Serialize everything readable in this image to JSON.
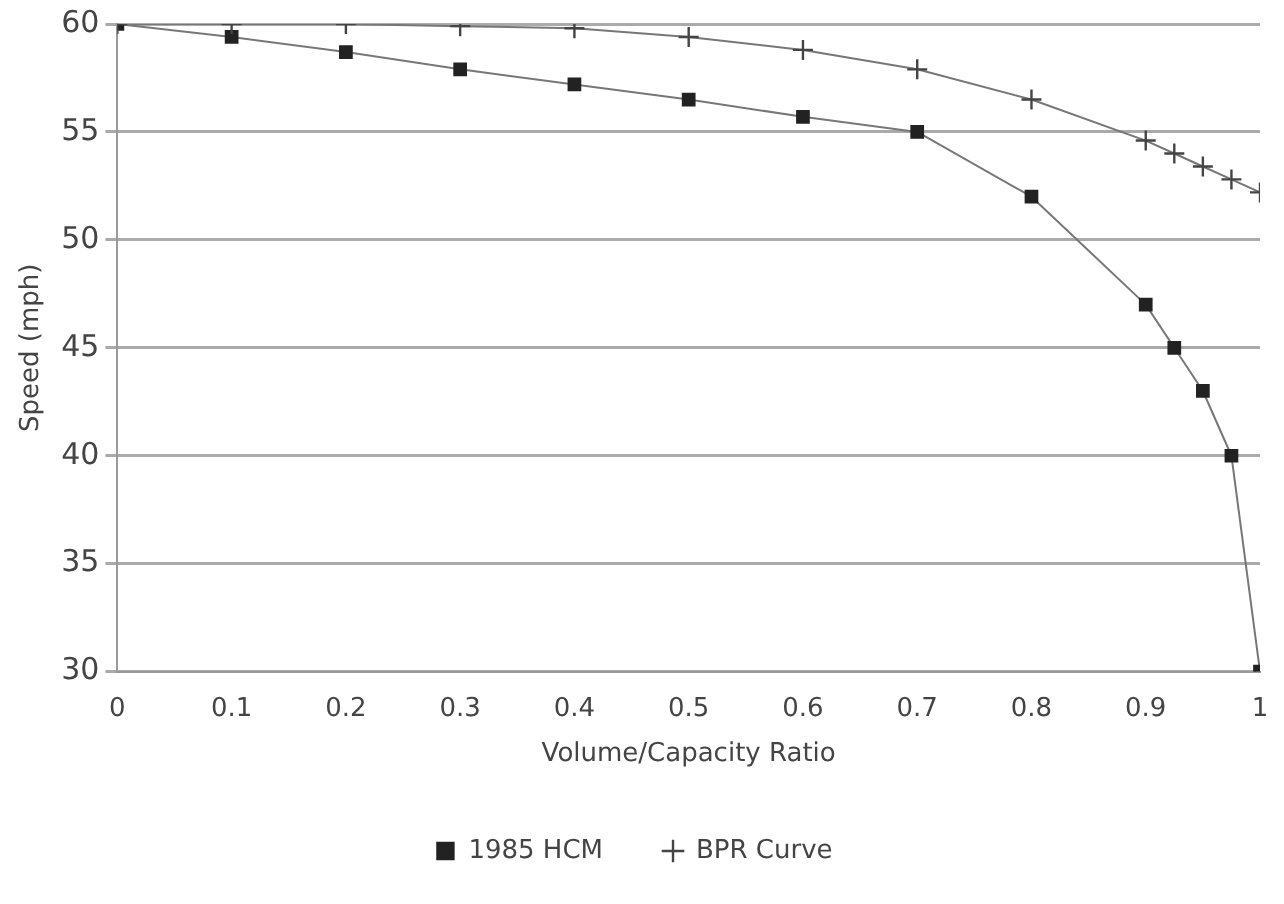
{
  "chart_data": {
    "type": "line",
    "xlabel": "Volume/Capacity Ratio",
    "ylabel": "Speed (mph)",
    "xlim": [
      0,
      1
    ],
    "xticks": [
      0,
      0.1,
      0.2,
      0.3,
      0.4,
      0.5,
      0.6,
      0.7,
      0.8,
      0.9,
      1
    ],
    "ylim": [
      30,
      60
    ],
    "yticks": [
      30,
      35,
      40,
      45,
      50,
      55,
      60
    ],
    "grid": "y",
    "legend": "bottom",
    "series": [
      {
        "name": "1985 HCM",
        "color": "#222222",
        "marker": "square",
        "x": [
          0,
          0.1,
          0.2,
          0.3,
          0.4,
          0.5,
          0.6,
          0.7,
          0.8,
          0.9,
          0.925,
          0.95,
          0.975,
          1
        ],
        "values": [
          60,
          59.4,
          58.7,
          57.9,
          57.2,
          56.5,
          55.7,
          55,
          52,
          47,
          45,
          43,
          40,
          30
        ]
      },
      {
        "name": "BPR Curve",
        "color": "#444444",
        "marker": "cross",
        "x": [
          0,
          0.1,
          0.2,
          0.3,
          0.4,
          0.5,
          0.6,
          0.7,
          0.8,
          0.9,
          0.925,
          0.95,
          0.975,
          1
        ],
        "values": [
          60,
          60,
          60,
          59.9,
          59.8,
          59.4,
          58.8,
          57.9,
          56.5,
          54.6,
          54,
          53.4,
          52.8,
          52.2
        ]
      }
    ]
  }
}
